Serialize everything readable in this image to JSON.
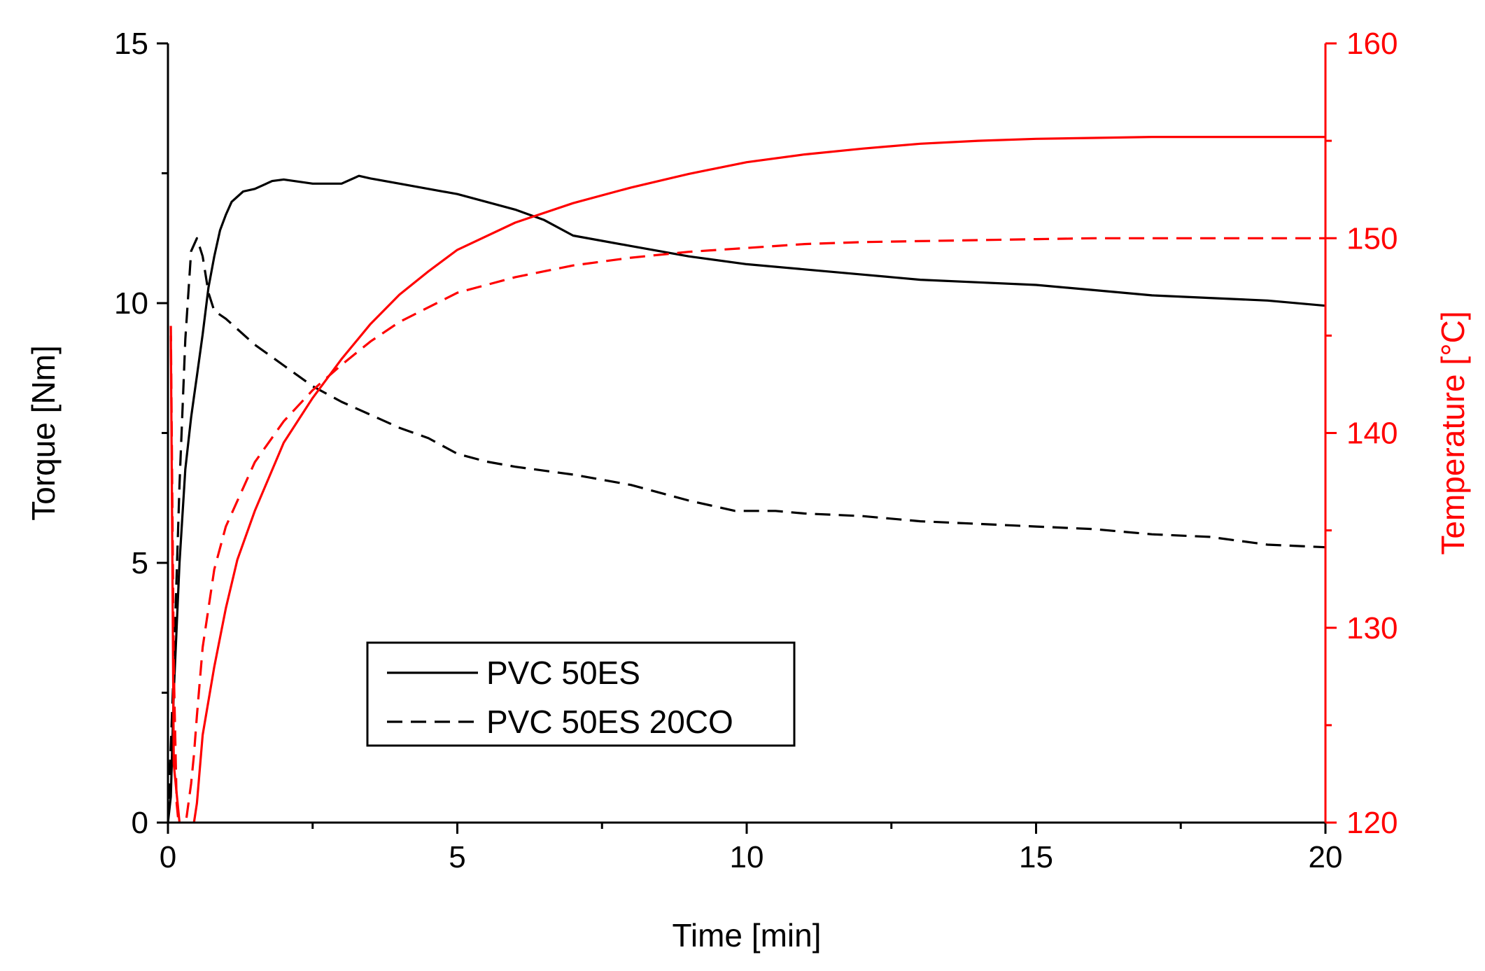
{
  "chart_data": {
    "type": "line",
    "title": "",
    "xlabel": "Time [min]",
    "ylabel": "Torque [Nm]",
    "y2label": "Temperature [°C]",
    "xlim": [
      0,
      20
    ],
    "ylim": [
      0,
      15
    ],
    "y2lim": [
      120,
      160
    ],
    "xticks": [
      "0",
      "5",
      "10",
      "15",
      "20"
    ],
    "yticks": [
      "0",
      "5",
      "10",
      "15"
    ],
    "y2ticks": [
      "120",
      "130",
      "140",
      "150",
      "160"
    ],
    "grid": false,
    "legend_position": "lower-center",
    "legend": [
      "PVC 50ES",
      "PVC 50ES 20CO"
    ],
    "colors": {
      "torque": "#000000",
      "temperature": "#ff0000"
    },
    "series": [
      {
        "name": "PVC 50ES",
        "quantity": "torque",
        "axis": "left",
        "style": "solid",
        "color": "#000000",
        "x": [
          0,
          0.05,
          0.1,
          0.2,
          0.3,
          0.4,
          0.45,
          0.5,
          0.6,
          0.7,
          0.8,
          0.9,
          1.0,
          1.1,
          1.3,
          1.5,
          1.8,
          2.0,
          2.5,
          3.0,
          3.3,
          3.5,
          4.0,
          4.5,
          5.0,
          5.5,
          6.0,
          6.5,
          7.0,
          7.5,
          8.0,
          9.0,
          10.0,
          11.0,
          12.0,
          13.0,
          14.0,
          15.0,
          16.0,
          17.0,
          18.0,
          19.0,
          20.0
        ],
        "y": [
          0,
          0.5,
          2.5,
          5.0,
          6.8,
          7.8,
          8.2,
          8.6,
          9.4,
          10.3,
          10.9,
          11.4,
          11.7,
          11.95,
          12.15,
          12.2,
          12.35,
          12.38,
          12.3,
          12.3,
          12.45,
          12.4,
          12.3,
          12.2,
          12.1,
          11.95,
          11.8,
          11.6,
          11.3,
          11.2,
          11.1,
          10.9,
          10.75,
          10.65,
          10.55,
          10.45,
          10.4,
          10.35,
          10.25,
          10.15,
          10.1,
          10.05,
          9.95
        ]
      },
      {
        "name": "PVC 50ES 20CO",
        "quantity": "torque",
        "axis": "left",
        "style": "dashed",
        "color": "#000000",
        "x": [
          0,
          0.1,
          0.2,
          0.3,
          0.4,
          0.5,
          0.6,
          0.7,
          0.8,
          1.0,
          1.5,
          2.0,
          2.5,
          3.0,
          3.5,
          4.0,
          4.5,
          5.0,
          5.5,
          6.0,
          7.0,
          8.0,
          9.0,
          9.8,
          10.5,
          11.0,
          12.0,
          13.0,
          14.0,
          15.0,
          16.0,
          17.0,
          18.0,
          19.0,
          20.0
        ],
        "y": [
          0,
          3.0,
          6.5,
          9.3,
          11.0,
          11.25,
          10.9,
          10.2,
          9.85,
          9.7,
          9.2,
          8.8,
          8.4,
          8.1,
          7.85,
          7.6,
          7.4,
          7.1,
          6.95,
          6.85,
          6.7,
          6.5,
          6.2,
          6.0,
          6.0,
          5.95,
          5.9,
          5.8,
          5.75,
          5.7,
          5.65,
          5.55,
          5.5,
          5.35,
          5.3
        ]
      },
      {
        "name": "PVC 50ES",
        "quantity": "temperature",
        "axis": "right",
        "style": "solid",
        "color": "#ff0000",
        "x": [
          0.05,
          0.1,
          0.2,
          0.3,
          0.4,
          0.45,
          0.5,
          0.6,
          0.8,
          1.0,
          1.2,
          1.5,
          2.0,
          2.5,
          3.0,
          3.5,
          4.0,
          4.5,
          5.0,
          6.0,
          7.0,
          8.0,
          9.0,
          10.0,
          11.0,
          12.0,
          13.0,
          14.0,
          15.0,
          16.0,
          17.0,
          18.0,
          19.0,
          20.0
        ],
        "y": [
          145,
          123,
          120,
          119.5,
          119.5,
          120,
          121,
          124.5,
          128,
          131,
          133.5,
          136,
          139.5,
          141.8,
          143.8,
          145.6,
          147.1,
          148.3,
          149.4,
          150.8,
          151.8,
          152.6,
          153.3,
          153.9,
          154.3,
          154.6,
          154.85,
          155.0,
          155.1,
          155.15,
          155.2,
          155.2,
          155.2,
          155.2
        ]
      },
      {
        "name": "PVC 50ES 20CO",
        "quantity": "temperature",
        "axis": "right",
        "style": "dashed",
        "color": "#ff0000",
        "x": [
          0.05,
          0.1,
          0.15,
          0.2,
          0.3,
          0.4,
          0.45,
          0.5,
          0.6,
          0.8,
          1.0,
          1.5,
          2.0,
          2.5,
          3.0,
          3.5,
          4.0,
          5.0,
          6.0,
          7.0,
          8.0,
          9.0,
          10.0,
          11.0,
          12.0,
          13.0,
          14.0,
          15.0,
          16.0,
          17.0,
          18.0,
          19.0,
          20.0
        ],
        "y": [
          145.5,
          128,
          121,
          119.5,
          119.8,
          122,
          123.5,
          125.5,
          129,
          133,
          135.2,
          138.5,
          140.6,
          142.2,
          143.5,
          144.7,
          145.7,
          147.2,
          148.0,
          148.6,
          149.0,
          149.3,
          149.5,
          149.7,
          149.8,
          149.85,
          149.9,
          149.95,
          150.0,
          150.0,
          150.0,
          150.0,
          150.0
        ]
      }
    ]
  }
}
